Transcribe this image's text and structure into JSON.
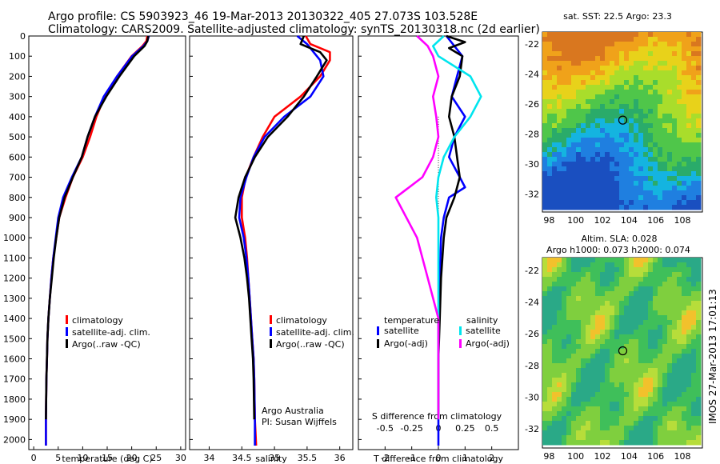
{
  "titles": {
    "line1": "Argo profile: CS 5903923_46 19-Mar-2013 20130322_405 27.073S 103.528E",
    "line2": "Climatology: CARS2009. Satellite-adjusted climatology: synTS_20130318.nc (2d earlier)"
  },
  "timestamp": "IMOS 27-Mar-2013 17:01:13",
  "colors": {
    "climatology": "#ff0000",
    "satellite": "#0000ff",
    "argo": "#000000",
    "sal_satellite": "#00e5ee",
    "sal_argo": "#ff00ff"
  },
  "chart_data": [
    {
      "type": "line",
      "panel": "temperature",
      "xlabel": "temperature (deg C)",
      "ylabel": "",
      "xlim": [
        -1,
        31
      ],
      "ylim": [
        2050,
        0
      ],
      "xticks": [
        "0",
        "5",
        "10",
        "15",
        "20",
        "25",
        "30"
      ],
      "yticks": [
        "0",
        "100",
        "200",
        "300",
        "400",
        "500",
        "600",
        "700",
        "800",
        "900",
        "1000",
        "1100",
        "1200",
        "1300",
        "1400",
        "1500",
        "1600",
        "1700",
        "1800",
        "1900",
        "2000"
      ],
      "legend": [
        "climatology",
        "satellite-adj. clim.",
        "Argo(..raw -QC)"
      ],
      "series": [
        {
          "name": "climatology",
          "color": "#ff0000",
          "x": [
            23.2,
            23.0,
            22.2,
            20.0,
            17.0,
            14.5,
            12.8,
            11.5,
            10.0,
            8.0,
            6.5,
            5.2,
            4.6,
            4.0,
            3.6,
            3.3,
            3.0,
            2.8,
            2.7,
            2.6,
            2.5,
            2.5
          ],
          "y": [
            0,
            25,
            50,
            100,
            200,
            300,
            400,
            500,
            600,
            700,
            800,
            900,
            1000,
            1100,
            1200,
            1300,
            1400,
            1500,
            1600,
            1700,
            1900,
            2030
          ]
        },
        {
          "name": "satellite-adj. clim.",
          "color": "#0000ff",
          "x": [
            23.5,
            23.2,
            22.4,
            20.1,
            17.0,
            14.3,
            12.5,
            11.0,
            9.8,
            7.8,
            6.0,
            5.0,
            4.5,
            4.0,
            3.6,
            3.3,
            3.0,
            2.8,
            2.7,
            2.6,
            2.5,
            2.5
          ],
          "y": [
            0,
            25,
            50,
            100,
            200,
            300,
            400,
            500,
            600,
            700,
            800,
            900,
            1000,
            1100,
            1200,
            1300,
            1400,
            1500,
            1600,
            1700,
            1900,
            2030
          ]
        },
        {
          "name": "Argo(..raw -QC)",
          "color": "#000000",
          "x": [
            23.4,
            23.2,
            22.6,
            20.5,
            17.5,
            14.8,
            12.5,
            11.0,
            9.8,
            8.0,
            6.3,
            5.2,
            4.6,
            4.1,
            3.7,
            3.3,
            3.0,
            2.8,
            2.7,
            2.6,
            2.5
          ],
          "y": [
            0,
            25,
            50,
            100,
            200,
            300,
            400,
            500,
            600,
            700,
            800,
            900,
            1000,
            1100,
            1200,
            1300,
            1400,
            1500,
            1600,
            1700,
            1900
          ]
        }
      ],
      "annotations": []
    },
    {
      "type": "line",
      "panel": "salinity",
      "xlabel": "salinity",
      "xlim": [
        33.7,
        36.2
      ],
      "ylim": [
        2050,
        0
      ],
      "xticks": [
        "34",
        "34.5",
        "35",
        "35.5",
        "36"
      ],
      "legend": [
        "climatology",
        "satellite-adj. clim.",
        "Argo(..raw -QC)"
      ],
      "series": [
        {
          "name": "climatology",
          "color": "#ff0000",
          "x": [
            35.48,
            35.55,
            35.85,
            35.85,
            35.7,
            35.4,
            35.0,
            34.82,
            34.68,
            34.56,
            34.5,
            34.5,
            34.55,
            34.58,
            34.6,
            34.62,
            34.64,
            34.66,
            34.68,
            34.69,
            34.7,
            34.72
          ],
          "y": [
            0,
            40,
            80,
            120,
            200,
            300,
            400,
            500,
            600,
            700,
            800,
            900,
            1000,
            1100,
            1200,
            1300,
            1400,
            1500,
            1600,
            1700,
            1900,
            2030
          ]
        },
        {
          "name": "satellite-adj. clim.",
          "color": "#0000ff",
          "x": [
            35.35,
            35.5,
            35.6,
            35.7,
            35.75,
            35.55,
            35.15,
            34.85,
            34.68,
            34.57,
            34.48,
            34.46,
            34.53,
            34.57,
            34.6,
            34.62,
            34.64,
            34.66,
            34.68,
            34.69,
            34.7,
            34.7
          ],
          "y": [
            0,
            40,
            80,
            120,
            200,
            300,
            400,
            500,
            600,
            700,
            800,
            900,
            1000,
            1100,
            1200,
            1300,
            1400,
            1500,
            1600,
            1700,
            1900,
            2030
          ]
        },
        {
          "name": "Argo(..raw -QC)",
          "color": "#000000",
          "x": [
            35.45,
            35.4,
            35.7,
            35.8,
            35.65,
            35.45,
            35.2,
            34.9,
            34.7,
            34.55,
            34.45,
            34.4,
            34.48,
            34.54,
            34.58,
            34.61,
            34.63,
            34.65,
            34.67,
            34.68,
            34.69
          ],
          "y": [
            0,
            40,
            80,
            120,
            200,
            300,
            400,
            500,
            600,
            700,
            800,
            900,
            1000,
            1100,
            1200,
            1300,
            1400,
            1500,
            1600,
            1700,
            1900
          ]
        }
      ],
      "annotations": [
        "Argo Australia",
        "PI: Susan Wijffels"
      ]
    },
    {
      "type": "line",
      "panel": "difference",
      "xlabel": "T difference from climatology",
      "xlabel_top": "S difference from climatology",
      "xlim": [
        -3,
        3
      ],
      "ylim": [
        2050,
        0
      ],
      "xticks": [
        "-2",
        "-1",
        "0",
        "1",
        "2"
      ],
      "xticks_top": [
        "-0.5",
        "-0.25",
        "0",
        "0.25",
        "0.5"
      ],
      "legend_groups": {
        "temperature": [
          "satellite",
          "Argo(-adj)"
        ],
        "salinity": [
          "satellite",
          "Argo(-adj)"
        ]
      },
      "series": [
        {
          "name": "satellite",
          "group": "temperature",
          "color": "#0000ff",
          "x": [
            0.3,
            0.6,
            0.9,
            0.8,
            0.7,
            0.5,
            1.0,
            0.6,
            0.4,
            0.8,
            1.0,
            0.4,
            0.2,
            0.1,
            0.05,
            0.0,
            0.0,
            0.0,
            0.0,
            0.0
          ],
          "y": [
            0,
            50,
            100,
            150,
            200,
            300,
            400,
            500,
            600,
            700,
            750,
            800,
            900,
            1000,
            1200,
            1400,
            1600,
            1800,
            1900,
            2030
          ]
        },
        {
          "name": "Argo(-adj)",
          "group": "temperature",
          "color": "#000000",
          "x": [
            0.3,
            1.0,
            0.4,
            0.9,
            0.8,
            0.5,
            0.4,
            0.6,
            0.7,
            0.8,
            0.6,
            0.3,
            0.2,
            0.1,
            0.05,
            0.0,
            0.0,
            0.0
          ],
          "y": [
            0,
            30,
            60,
            100,
            200,
            300,
            400,
            500,
            600,
            700,
            800,
            900,
            1000,
            1200,
            1400,
            1600,
            1800,
            1900
          ]
        },
        {
          "name": "satellite",
          "group": "salinity",
          "color": "#00e5ee",
          "x": [
            0.05,
            -0.05,
            0.0,
            0.3,
            0.4,
            0.3,
            0.15,
            0.05,
            0.0,
            -0.02,
            0.0,
            0.0,
            0.0,
            0.0,
            0.0,
            0.0
          ],
          "y": [
            0,
            50,
            100,
            200,
            300,
            400,
            500,
            600,
            700,
            800,
            900,
            1000,
            1200,
            1400,
            1600,
            1900
          ]
        },
        {
          "name": "Argo(-adj)",
          "group": "salinity",
          "color": "#ff00ff",
          "x": [
            -0.2,
            -0.1,
            -0.05,
            0.0,
            -0.05,
            -0.02,
            0.0,
            -0.05,
            -0.15,
            -0.4,
            -0.3,
            -0.2,
            -0.1,
            0.0,
            0.0,
            0.0
          ],
          "y": [
            0,
            50,
            100,
            200,
            300,
            400,
            500,
            600,
            700,
            800,
            900,
            1000,
            1200,
            1400,
            1600,
            1900
          ]
        }
      ],
      "annotations": []
    },
    {
      "type": "heatmap",
      "panel": "map-sst",
      "title": "sat. SST: 22.5  Argo: 23.3",
      "xticks": [
        "98",
        "100",
        "102",
        "104",
        "106",
        "108"
      ],
      "yticks": [
        "-22",
        "-24",
        "-26",
        "-28",
        "-30",
        "-32"
      ],
      "marker": {
        "lon": 103.528,
        "lat": -27.073
      }
    },
    {
      "type": "heatmap",
      "panel": "map-sla",
      "title": "Altim. SLA: 0.028",
      "subtitle": "Argo h1000: 0.073 h2000: 0.074",
      "xticks": [
        "98",
        "100",
        "102",
        "104",
        "106",
        "108"
      ],
      "yticks": [
        "-22",
        "-24",
        "-26",
        "-28",
        "-30",
        "-32"
      ],
      "marker": {
        "lon": 103.528,
        "lat": -27.073
      }
    }
  ]
}
